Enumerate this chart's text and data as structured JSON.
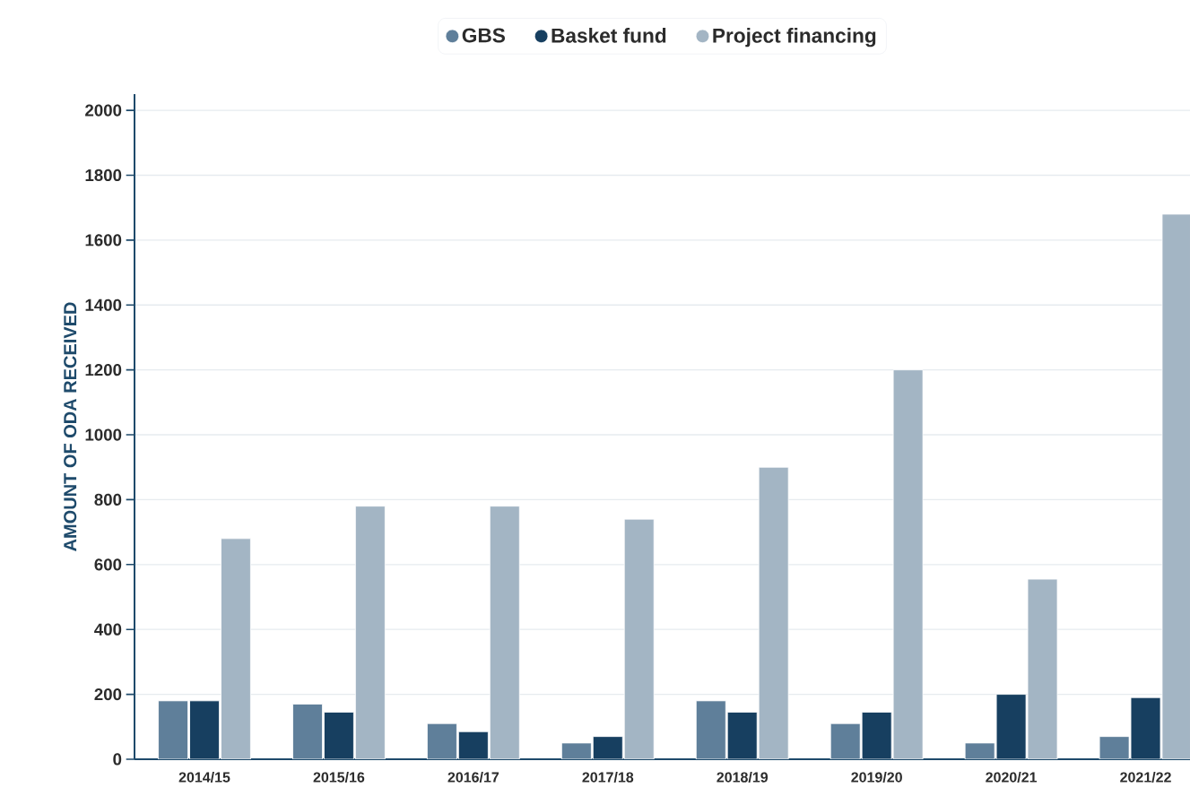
{
  "chart_data": {
    "type": "bar",
    "ylabel": "AMOUNT OF ODA RECEIVED",
    "categories": [
      "2014/15",
      "2015/16",
      "2016/17",
      "2017/18",
      "2018/19",
      "2019/20",
      "2020/21",
      "2021/22"
    ],
    "series": [
      {
        "name": "GBS",
        "color": "#5f7f9a",
        "values": [
          180,
          170,
          110,
          50,
          180,
          110,
          50,
          70
        ]
      },
      {
        "name": "Basket fund",
        "color": "#173f60",
        "values": [
          180,
          145,
          85,
          70,
          145,
          145,
          200,
          190
        ]
      },
      {
        "name": "Project financing",
        "color": "#a3b5c4",
        "values": [
          680,
          780,
          780,
          740,
          900,
          1200,
          555,
          1680
        ]
      }
    ],
    "ylim": [
      0,
      2050
    ],
    "yticks": [
      0,
      200,
      400,
      600,
      800,
      1000,
      1200,
      1400,
      1600,
      1800,
      2000
    ],
    "grid": "y",
    "legend": "top"
  }
}
